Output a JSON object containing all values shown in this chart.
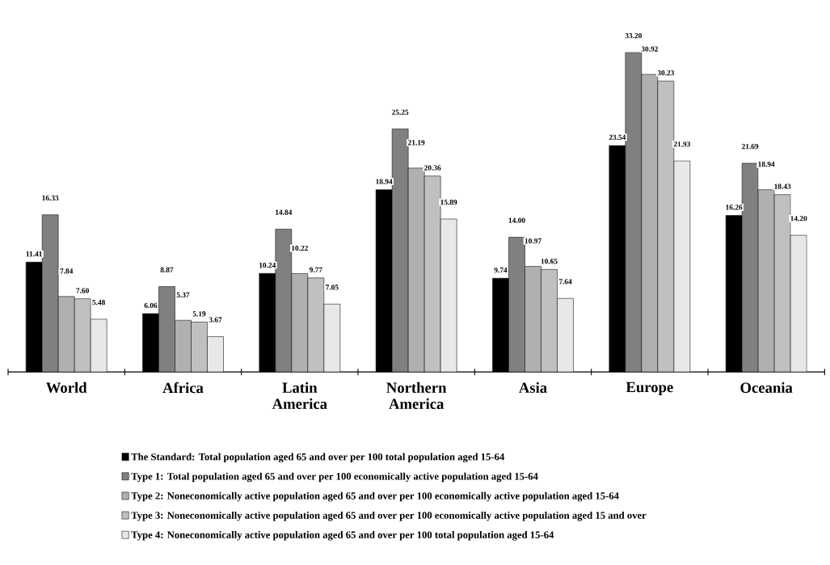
{
  "chart_data": {
    "type": "bar",
    "categories": [
      "World",
      "Africa",
      "Latin America",
      "Northern America",
      "Asia",
      "Europe",
      "Oceania"
    ],
    "series": [
      {
        "name": "The Standard: Total population aged 65 and over per 100 total population aged 15-64",
        "color": "#000000",
        "values": [
          11.41,
          6.06,
          10.24,
          18.94,
          9.74,
          23.54,
          16.26
        ],
        "value_labels": [
          "11.41",
          "6.06",
          "10.24",
          "18.94",
          "9.74",
          "23.54",
          "16.26"
        ]
      },
      {
        "name": "Type 1: Total population aged 65 and over per 100 economically active population aged 15-64",
        "color": "#808080",
        "values": [
          16.33,
          8.87,
          14.84,
          25.25,
          14.0,
          33.2,
          21.69
        ],
        "value_labels": [
          "16.33",
          "8.87",
          "14.84",
          "25.25",
          "14.00",
          "33.20",
          "21.69"
        ]
      },
      {
        "name": "Type 2: Noneconomically active population aged 65 and over per 100 economically active population aged 15-64",
        "color": "#b0b0b0",
        "values": [
          7.84,
          5.37,
          10.22,
          21.19,
          10.97,
          30.92,
          18.94
        ],
        "value_labels": [
          "7.84",
          "5.37",
          "10.22",
          "21.19",
          "10.97",
          "30.92",
          "18.94"
        ]
      },
      {
        "name": "Type 3: Noneconomically active population aged 65 and over per 100 economically active population aged 15 and over",
        "color": "#c0c0c0",
        "values": [
          7.6,
          5.19,
          9.77,
          20.36,
          10.65,
          30.23,
          18.43
        ],
        "value_labels": [
          "7.60",
          "5.19",
          "9.77",
          "20.36",
          "10.65",
          "30.23",
          "18.43"
        ]
      },
      {
        "name": "Type 4: Noneconomically active population aged 65 and over per 100 total population aged 15-64",
        "color": "#e8e8e8",
        "values": [
          5.48,
          3.67,
          7.05,
          15.89,
          7.64,
          21.93,
          14.2
        ],
        "value_labels": [
          "5.48",
          "3.67",
          "7.05",
          "15.89",
          "7.64",
          "21.93",
          "14.20"
        ]
      }
    ],
    "legend": "bottom"
  }
}
